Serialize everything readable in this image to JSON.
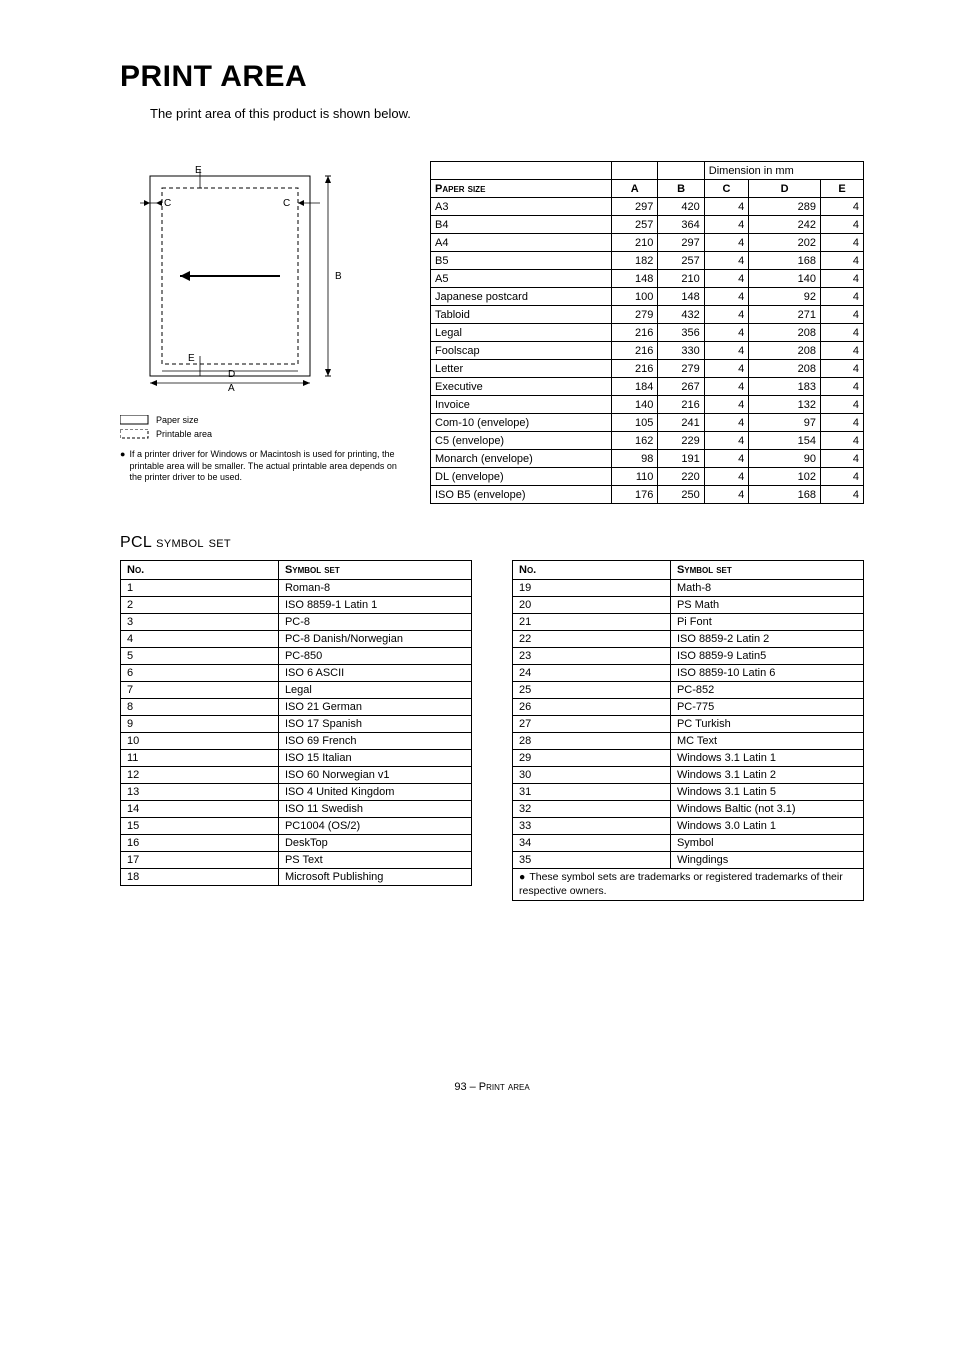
{
  "title": "PRINT AREA",
  "intro": "The print area of this product is shown below.",
  "diagram": {
    "labels": {
      "A": "A",
      "B": "B",
      "C": "C",
      "D": "D",
      "E": "E"
    },
    "legend_paper": "Paper size",
    "legend_printable": "Printable area"
  },
  "note": "If a printer driver for Windows or Macintosh is used for printing, the printable area will be smaller. The actual printable area depends on the printer driver to be used.",
  "dim_table": {
    "caption": "Dimension in mm",
    "headers": {
      "paper": "Paper size",
      "A": "A",
      "B": "B",
      "C": "C",
      "D": "D",
      "E": "E"
    },
    "rows": [
      {
        "name": "A3",
        "A": 297,
        "B": 420,
        "C": 4,
        "D": 289,
        "E": 4
      },
      {
        "name": "B4",
        "A": 257,
        "B": 364,
        "C": 4,
        "D": 242,
        "E": 4
      },
      {
        "name": "A4",
        "A": 210,
        "B": 297,
        "C": 4,
        "D": 202,
        "E": 4
      },
      {
        "name": "B5",
        "A": 182,
        "B": 257,
        "C": 4,
        "D": 168,
        "E": 4
      },
      {
        "name": "A5",
        "A": 148,
        "B": 210,
        "C": 4,
        "D": 140,
        "E": 4
      },
      {
        "name": "Japanese postcard",
        "A": 100,
        "B": 148,
        "C": 4,
        "D": 92,
        "E": 4
      },
      {
        "name": "Tabloid",
        "A": 279,
        "B": 432,
        "C": 4,
        "D": 271,
        "E": 4
      },
      {
        "name": "Legal",
        "A": 216,
        "B": 356,
        "C": 4,
        "D": 208,
        "E": 4
      },
      {
        "name": "Foolscap",
        "A": 216,
        "B": 330,
        "C": 4,
        "D": 208,
        "E": 4
      },
      {
        "name": "Letter",
        "A": 216,
        "B": 279,
        "C": 4,
        "D": 208,
        "E": 4
      },
      {
        "name": "Executive",
        "A": 184,
        "B": 267,
        "C": 4,
        "D": 183,
        "E": 4
      },
      {
        "name": "Invoice",
        "A": 140,
        "B": 216,
        "C": 4,
        "D": 132,
        "E": 4
      },
      {
        "name": "Com-10 (envelope)",
        "A": 105,
        "B": 241,
        "C": 4,
        "D": 97,
        "E": 4
      },
      {
        "name": "C5 (envelope)",
        "A": 162,
        "B": 229,
        "C": 4,
        "D": 154,
        "E": 4
      },
      {
        "name": "Monarch (envelope)",
        "A": 98,
        "B": 191,
        "C": 4,
        "D": 90,
        "E": 4
      },
      {
        "name": "DL (envelope)",
        "A": 110,
        "B": 220,
        "C": 4,
        "D": 102,
        "E": 4
      },
      {
        "name": "ISO B5 (envelope)",
        "A": 176,
        "B": 250,
        "C": 4,
        "D": 168,
        "E": 4
      }
    ]
  },
  "pcl_heading": "PCL symbol set",
  "sym_headers": {
    "no": "No.",
    "set": "Symbol set"
  },
  "sym_left": [
    {
      "no": 1,
      "set": "Roman-8"
    },
    {
      "no": 2,
      "set": "ISO 8859-1 Latin 1"
    },
    {
      "no": 3,
      "set": "PC-8"
    },
    {
      "no": 4,
      "set": "PC-8 Danish/Norwegian"
    },
    {
      "no": 5,
      "set": "PC-850"
    },
    {
      "no": 6,
      "set": "ISO 6 ASCII"
    },
    {
      "no": 7,
      "set": "Legal"
    },
    {
      "no": 8,
      "set": "ISO 21 German"
    },
    {
      "no": 9,
      "set": "ISO 17 Spanish"
    },
    {
      "no": 10,
      "set": "ISO 69 French"
    },
    {
      "no": 11,
      "set": "ISO 15 Italian"
    },
    {
      "no": 12,
      "set": "ISO 60 Norwegian v1"
    },
    {
      "no": 13,
      "set": "ISO 4 United Kingdom"
    },
    {
      "no": 14,
      "set": "ISO 11 Swedish"
    },
    {
      "no": 15,
      "set": "PC1004 (OS/2)"
    },
    {
      "no": 16,
      "set": "DeskTop"
    },
    {
      "no": 17,
      "set": "PS Text"
    },
    {
      "no": 18,
      "set": "Microsoft Publishing"
    }
  ],
  "sym_right": [
    {
      "no": 19,
      "set": "Math-8"
    },
    {
      "no": 20,
      "set": "PS Math"
    },
    {
      "no": 21,
      "set": "Pi Font"
    },
    {
      "no": 22,
      "set": "ISO 8859-2 Latin 2"
    },
    {
      "no": 23,
      "set": "ISO 8859-9 Latin5"
    },
    {
      "no": 24,
      "set": "ISO 8859-10 Latin 6"
    },
    {
      "no": 25,
      "set": "PC-852"
    },
    {
      "no": 26,
      "set": "PC-775"
    },
    {
      "no": 27,
      "set": "PC Turkish"
    },
    {
      "no": 28,
      "set": "MC Text"
    },
    {
      "no": 29,
      "set": "Windows 3.1 Latin 1"
    },
    {
      "no": 30,
      "set": "Windows 3.1 Latin 2"
    },
    {
      "no": 31,
      "set": "Windows 3.1 Latin 5"
    },
    {
      "no": 32,
      "set": "Windows Baltic (not 3.1)"
    },
    {
      "no": 33,
      "set": "Windows 3.0 Latin 1"
    },
    {
      "no": 34,
      "set": "Symbol"
    },
    {
      "no": 35,
      "set": "Wingdings"
    }
  ],
  "sym_footnote": "These symbol sets are trademarks or registered trademarks of their respective owners.",
  "footer": "93 – Print area"
}
